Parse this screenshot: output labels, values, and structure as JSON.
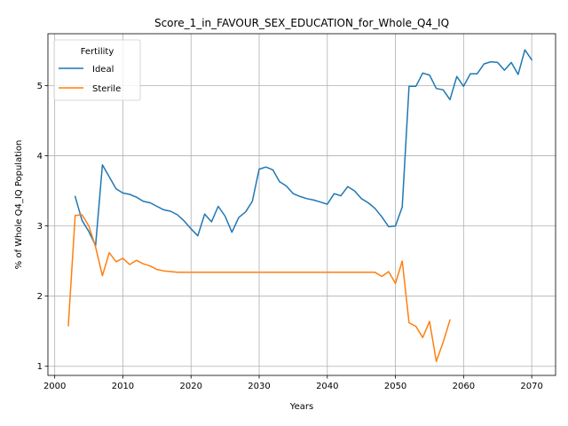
{
  "chart_data": {
    "type": "line",
    "title": "Score_1_in_FAVOUR_SEX_EDUCATION_for_Whole_Q4_IQ",
    "xlabel": "Years",
    "ylabel": "% of Whole Q4_IQ Population",
    "xlim": [
      1999,
      2073.5
    ],
    "ylim": [
      0.87,
      5.74
    ],
    "xticks": [
      2000,
      2010,
      2020,
      2030,
      2040,
      2050,
      2060,
      2070
    ],
    "yticks": [
      1,
      2,
      3,
      4,
      5
    ],
    "grid": true,
    "legend": {
      "title": "Fertility",
      "placement": "top-left"
    },
    "series": [
      {
        "name": "Ideal",
        "color": "#1f77b4",
        "x": [
          2003,
          2004,
          2005,
          2006,
          2007,
          2008,
          2009,
          2010,
          2011,
          2012,
          2013,
          2014,
          2015,
          2016,
          2017,
          2018,
          2019,
          2020,
          2021,
          2022,
          2023,
          2024,
          2025,
          2026,
          2027,
          2028,
          2029,
          2030,
          2031,
          2032,
          2033,
          2034,
          2035,
          2036,
          2037,
          2038,
          2039,
          2040,
          2041,
          2042,
          2043,
          2044,
          2045,
          2046,
          2047,
          2048,
          2049,
          2050,
          2051,
          2052,
          2053,
          2054,
          2055,
          2056,
          2057,
          2058,
          2059,
          2060,
          2061,
          2062,
          2063,
          2064,
          2065,
          2066,
          2067,
          2068,
          2069,
          2070
        ],
        "y": [
          3.42,
          3.08,
          2.92,
          2.72,
          3.87,
          3.7,
          3.53,
          3.47,
          3.45,
          3.41,
          3.35,
          3.33,
          3.28,
          3.23,
          3.21,
          3.16,
          3.07,
          2.96,
          2.86,
          3.17,
          3.06,
          3.28,
          3.14,
          2.91,
          3.12,
          3.2,
          3.35,
          3.81,
          3.84,
          3.8,
          3.63,
          3.57,
          3.46,
          3.42,
          3.39,
          3.37,
          3.34,
          3.31,
          3.46,
          3.43,
          3.56,
          3.5,
          3.39,
          3.33,
          3.25,
          3.13,
          2.99,
          3.0,
          3.27,
          4.99,
          4.99,
          5.18,
          5.15,
          4.96,
          4.94,
          4.8,
          5.13,
          4.99,
          5.17,
          5.17,
          5.31,
          5.34,
          5.33,
          5.22,
          5.33,
          5.16,
          5.51,
          5.37
        ]
      },
      {
        "name": "Sterile",
        "color": "#ff7f0e",
        "x": [
          2002,
          2003,
          2004,
          2005,
          2006,
          2007,
          2008,
          2009,
          2010,
          2011,
          2012,
          2013,
          2014,
          2015,
          2016,
          2017,
          2018,
          2019,
          2020,
          2021,
          2022,
          2023,
          2024,
          2025,
          2026,
          2027,
          2028,
          2029,
          2030,
          2031,
          2032,
          2033,
          2034,
          2035,
          2036,
          2037,
          2038,
          2039,
          2040,
          2041,
          2042,
          2043,
          2044,
          2045,
          2046,
          2047,
          2048,
          2049,
          2050,
          2051,
          2052,
          2053,
          2054,
          2055,
          2056,
          2057,
          2058
        ],
        "y": [
          1.58,
          3.15,
          3.16,
          3.0,
          2.7,
          2.29,
          2.62,
          2.49,
          2.54,
          2.45,
          2.51,
          2.46,
          2.43,
          2.38,
          2.36,
          2.35,
          2.34,
          2.34,
          2.34,
          2.34,
          2.34,
          2.34,
          2.34,
          2.34,
          2.34,
          2.34,
          2.34,
          2.34,
          2.34,
          2.34,
          2.34,
          2.34,
          2.34,
          2.34,
          2.34,
          2.34,
          2.34,
          2.34,
          2.34,
          2.34,
          2.34,
          2.34,
          2.34,
          2.34,
          2.34,
          2.34,
          2.28,
          2.35,
          2.18,
          2.5,
          1.62,
          1.57,
          1.41,
          1.64,
          1.07,
          1.34,
          1.66
        ]
      }
    ]
  }
}
